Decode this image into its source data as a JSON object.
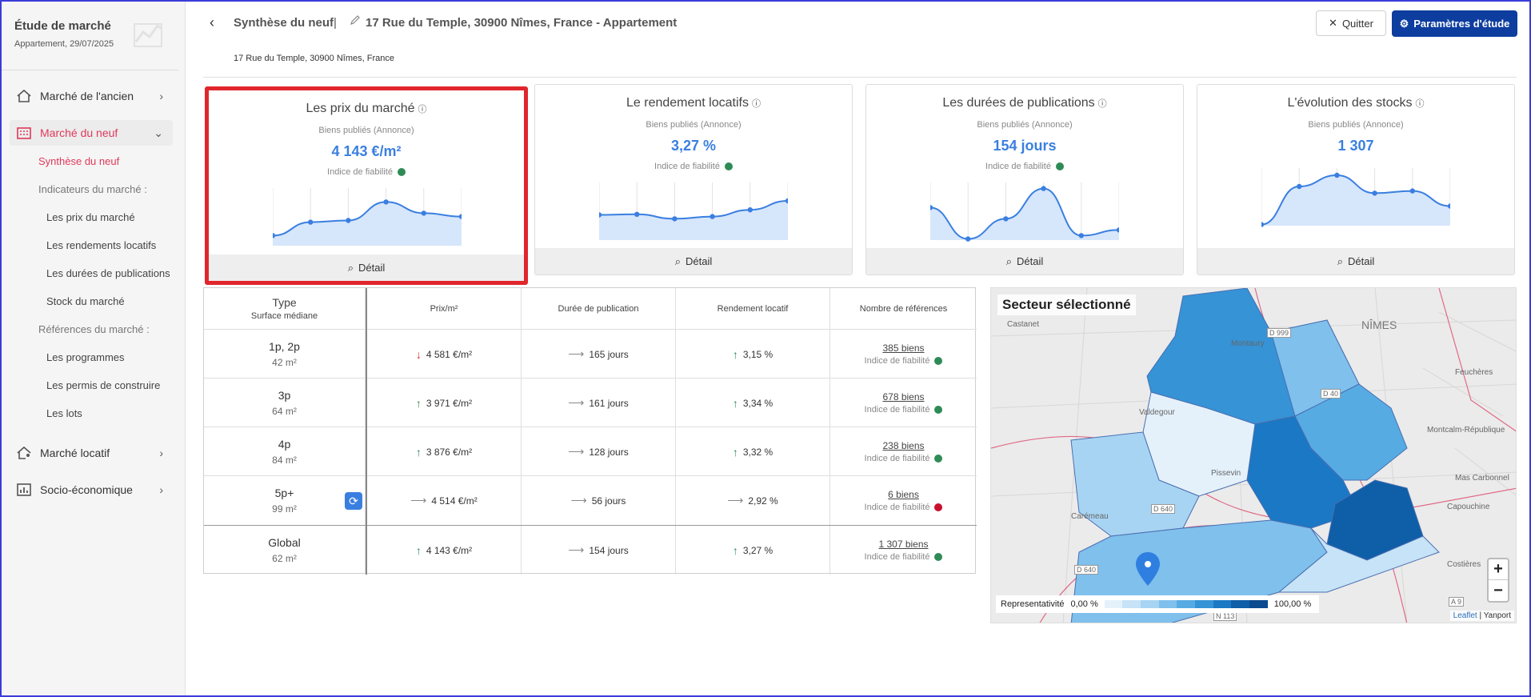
{
  "sidebar": {
    "title": "Étude de marché",
    "subtitle": "Appartement, 29/07/2025",
    "sections": [
      {
        "label": "Marché de l'ancien"
      },
      {
        "label": "Marché du neuf"
      },
      {
        "label": "Marché locatif"
      },
      {
        "label": "Socio-économique"
      }
    ],
    "neuf_links": {
      "synthese": "Synthèse du neuf",
      "indicateurs_group": "Indicateurs du marché :",
      "prix": "Les prix du marché",
      "rendements": "Les rendements locatifs",
      "durees": "Les durées de publications",
      "stock": "Stock du marché",
      "references_group": "Références du marché :",
      "programmes": "Les programmes",
      "permis": "Les permis de construire",
      "lots": "Les lots"
    }
  },
  "header": {
    "back_icon": "chevron-left-icon",
    "title": "Synthèse du neuf",
    "separator": "|",
    "address": "17 Rue du Temple, 30900 Nîmes, France - Appartement",
    "sub_address": "17 Rue du Temple, 30900 Nîmes, France",
    "quit_label": "Quitter",
    "params_label": "Paramètres d'étude"
  },
  "cards": [
    {
      "title": "Les prix du marché",
      "label": "Biens publiés (Annonce)",
      "value": "4 143 €/m²",
      "reliability_label": "Indice de fiabilité",
      "reliability": "green",
      "detail_label": "Détail",
      "selected": true,
      "spark": [
        0.18,
        0.42,
        0.45,
        0.78,
        0.58,
        0.52
      ]
    },
    {
      "title": "Le rendement locatifs",
      "label": "Biens publiés (Annonce)",
      "value": "3,27 %",
      "reliability_label": "Indice de fiabilité",
      "reliability": "green",
      "detail_label": "Détail",
      "selected": false,
      "spark": [
        0.45,
        0.46,
        0.38,
        0.42,
        0.54,
        0.7
      ]
    },
    {
      "title": "Les durées de publications",
      "label": "Biens publiés (Annonce)",
      "value": "154 jours",
      "reliability_label": "Indice de fiabilité",
      "reliability": "green",
      "detail_label": "Détail",
      "selected": false,
      "spark": [
        0.58,
        0.02,
        0.38,
        0.92,
        0.08,
        0.18
      ]
    },
    {
      "title": "L'évolution des stocks",
      "label": "Biens publiés (Annonce)",
      "value": "1 307",
      "reliability_label": "",
      "reliability": "",
      "detail_label": "Détail",
      "selected": false,
      "spark": [
        0.02,
        0.7,
        0.9,
        0.58,
        0.62,
        0.35
      ]
    }
  ],
  "table": {
    "headers": {
      "type": "Type",
      "surface": "Surface médiane",
      "prix": "Prix/m²",
      "duree": "Durée de publication",
      "rendement": "Rendement locatif",
      "references": "Nombre de références"
    },
    "rows": [
      {
        "type": "1p, 2p",
        "surface": "42 m²",
        "prix": "4 581 €/m²",
        "prix_trend": "down",
        "duree": "165 jours",
        "duree_trend": "flat",
        "rendement": "3,15 %",
        "rendement_trend": "up",
        "refs": "385 biens",
        "rel_label": "Indice de fiabilité",
        "rel": "green"
      },
      {
        "type": "3p",
        "surface": "64 m²",
        "prix": "3 971 €/m²",
        "prix_trend": "up",
        "duree": "161 jours",
        "duree_trend": "flat",
        "rendement": "3,34 %",
        "rendement_trend": "up",
        "refs": "678 biens",
        "rel_label": "Indice de fiabilité",
        "rel": "green"
      },
      {
        "type": "4p",
        "surface": "84 m²",
        "prix": "3 876 €/m²",
        "prix_trend": "up",
        "duree": "128 jours",
        "duree_trend": "flat",
        "rendement": "3,32 %",
        "rendement_trend": "up",
        "refs": "238 biens",
        "rel_label": "Indice de fiabilité",
        "rel": "green"
      },
      {
        "type": "5p+",
        "surface": "99 m²",
        "prix": "4 514 €/m²",
        "prix_trend": "flat",
        "duree": "56 jours",
        "duree_trend": "flat",
        "rendement": "2,92 %",
        "rendement_trend": "flat",
        "refs": "6 biens",
        "rel_label": "Indice de fiabilité",
        "rel": "red"
      },
      {
        "type": "Global",
        "surface": "62 m²",
        "prix": "4 143 €/m²",
        "prix_trend": "up",
        "duree": "154 jours",
        "duree_trend": "flat",
        "rendement": "3,27 %",
        "rendement_trend": "up",
        "refs": "1 307 biens",
        "rel_label": "Indice de fiabilité",
        "rel": "green"
      }
    ]
  },
  "map": {
    "title": "Secteur sélectionné",
    "legend_label": "Representativité",
    "legend_min": "0,00 %",
    "legend_max": "100,00 %",
    "zoom_in": "+",
    "zoom_out": "−",
    "attribution_link": "Leaflet",
    "attribution_sep": "|",
    "attribution_src": "Yanport",
    "labels": [
      "NÎMES",
      "Castanet",
      "Montaury",
      "Valdegour",
      "Pissevin",
      "Carémeau",
      "Mas Carbonnel",
      "Capouchine",
      "Costières",
      "Montcalm-République",
      "Feuchères"
    ],
    "roads": [
      "D 999",
      "D 40",
      "D 640",
      "D 640",
      "N 113",
      "A 9"
    ],
    "colors": {
      "legend": [
        "#e4f1fb",
        "#c6e3f7",
        "#a8d4f3",
        "#7fc0ec",
        "#56abe3",
        "#3593d6",
        "#1b78c4",
        "#0f5ea8",
        "#0b4a8f"
      ]
    }
  }
}
